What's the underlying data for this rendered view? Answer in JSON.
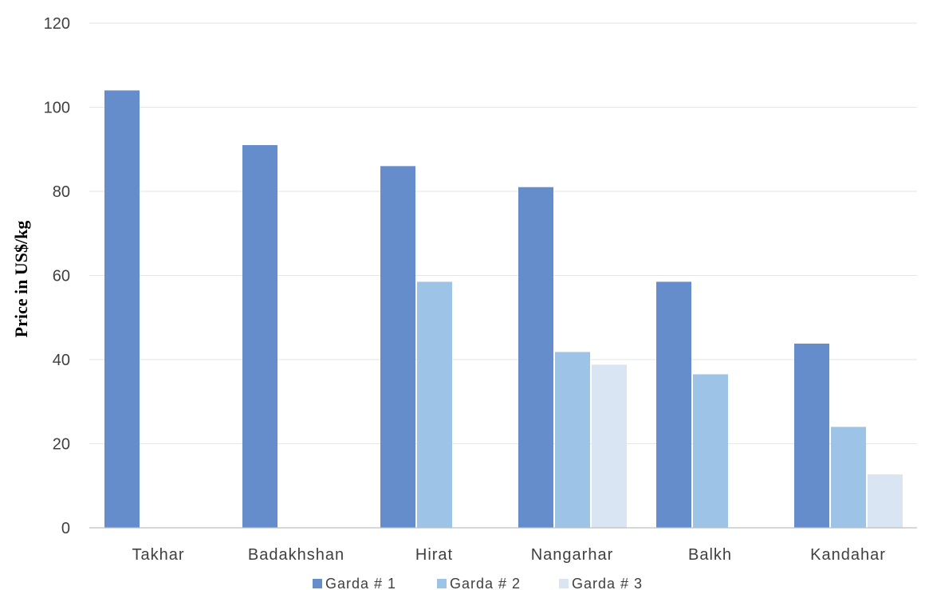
{
  "chart_data": {
    "type": "bar",
    "title": "",
    "xlabel": "",
    "ylabel": "Price in US$/kg",
    "ylim": [
      0,
      120
    ],
    "yticks": [
      0,
      20,
      40,
      60,
      80,
      100,
      120
    ],
    "grid": true,
    "legend_position": "bottom",
    "categories": [
      "Takhar",
      "Badakhshan",
      "Hirat",
      "Nangarhar",
      "Balkh",
      "Kandahar"
    ],
    "series": [
      {
        "name": "Garda # 1",
        "color": "#658ccb",
        "values": [
          104,
          91,
          86,
          81,
          58.5,
          43.8
        ]
      },
      {
        "name": "Garda # 2",
        "color": "#9dc3e6",
        "values": [
          null,
          null,
          58.5,
          41.8,
          36.5,
          24
        ]
      },
      {
        "name": "Garda # 3",
        "color": "#dae5f3",
        "values": [
          null,
          null,
          null,
          38.8,
          null,
          12.7
        ]
      }
    ]
  }
}
